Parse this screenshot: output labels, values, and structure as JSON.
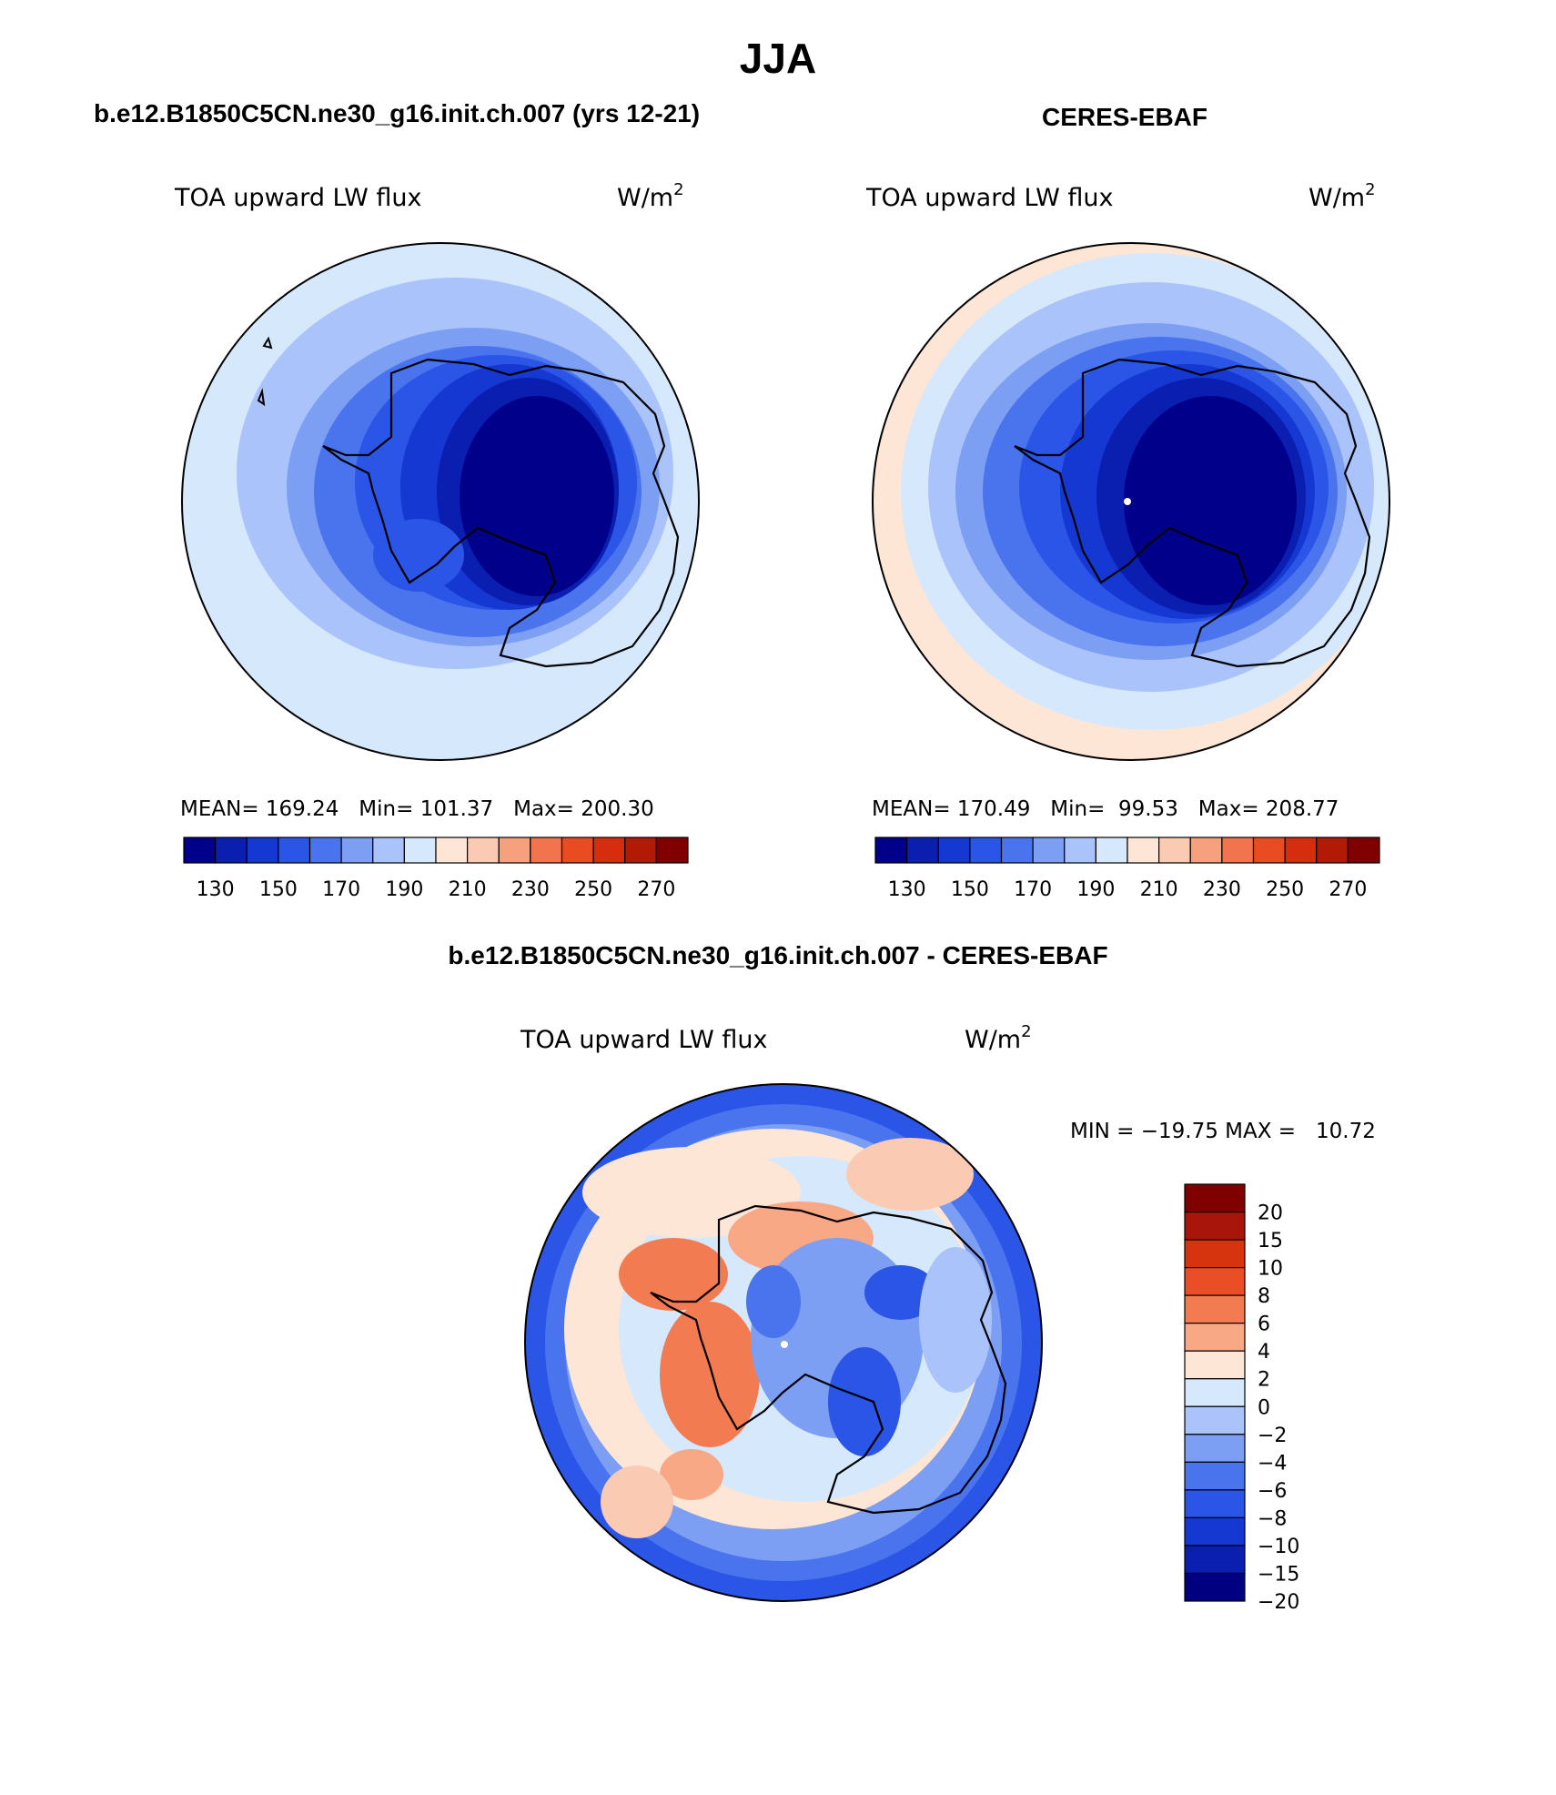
{
  "title": "JJA",
  "panels": [
    {
      "name": "model",
      "heading": "b.e12.B1850C5CN.ne30_g16.init.ch.007 (yrs 12-21)",
      "variable": "TOA upward LW flux",
      "units_base": "W/m",
      "units_exp": "2",
      "stats": {
        "mean": "169.24",
        "min": "101.37",
        "max": "200.30"
      },
      "stats_text": "MEAN= 169.24   Min= 101.37   Max= 200.30"
    },
    {
      "name": "obs",
      "heading": "CERES-EBAF",
      "variable": "TOA upward LW flux",
      "units_base": "W/m",
      "units_exp": "2",
      "stats": {
        "mean": "170.49",
        "min": "99.53",
        "max": "208.77"
      },
      "stats_text": "MEAN= 170.49   Min=  99.53   Max= 208.77"
    }
  ],
  "difference": {
    "heading": "b.e12.B1850C5CN.ne30_g16.init.ch.007 - CERES-EBAF",
    "variable": "TOA upward LW flux",
    "units_base": "W/m",
    "units_exp": "2",
    "minmax_text": "MIN = −19.75 MAX =   10.72"
  },
  "colorbar_abs": {
    "colors": [
      "#00008b",
      "#0a1fb0",
      "#1638d2",
      "#2a55e6",
      "#4a74ee",
      "#7c9ff4",
      "#aac3fa",
      "#d6e8fc",
      "#fde6d6",
      "#fbcab2",
      "#f7a07e",
      "#f2744e",
      "#ea4c22",
      "#d62d0e",
      "#b21a06",
      "#800000"
    ],
    "labels": [
      "130",
      "150",
      "170",
      "190",
      "210",
      "230",
      "250",
      "270"
    ]
  },
  "colorbar_diff": {
    "colors": [
      "#800000",
      "#a8150a",
      "#d6330f",
      "#ea4e26",
      "#f37b52",
      "#f8a884",
      "#fde6d6",
      "#d6e8fc",
      "#aac3fa",
      "#7c9ff4",
      "#4a74ee",
      "#2a55e6",
      "#1638d2",
      "#0a1fb0",
      "#000080"
    ],
    "labels": [
      "20",
      "15",
      "10",
      "8",
      "6",
      "4",
      "2",
      "0",
      "−2",
      "−4",
      "−6",
      "−8",
      "−10",
      "−15",
      "−20"
    ]
  }
}
